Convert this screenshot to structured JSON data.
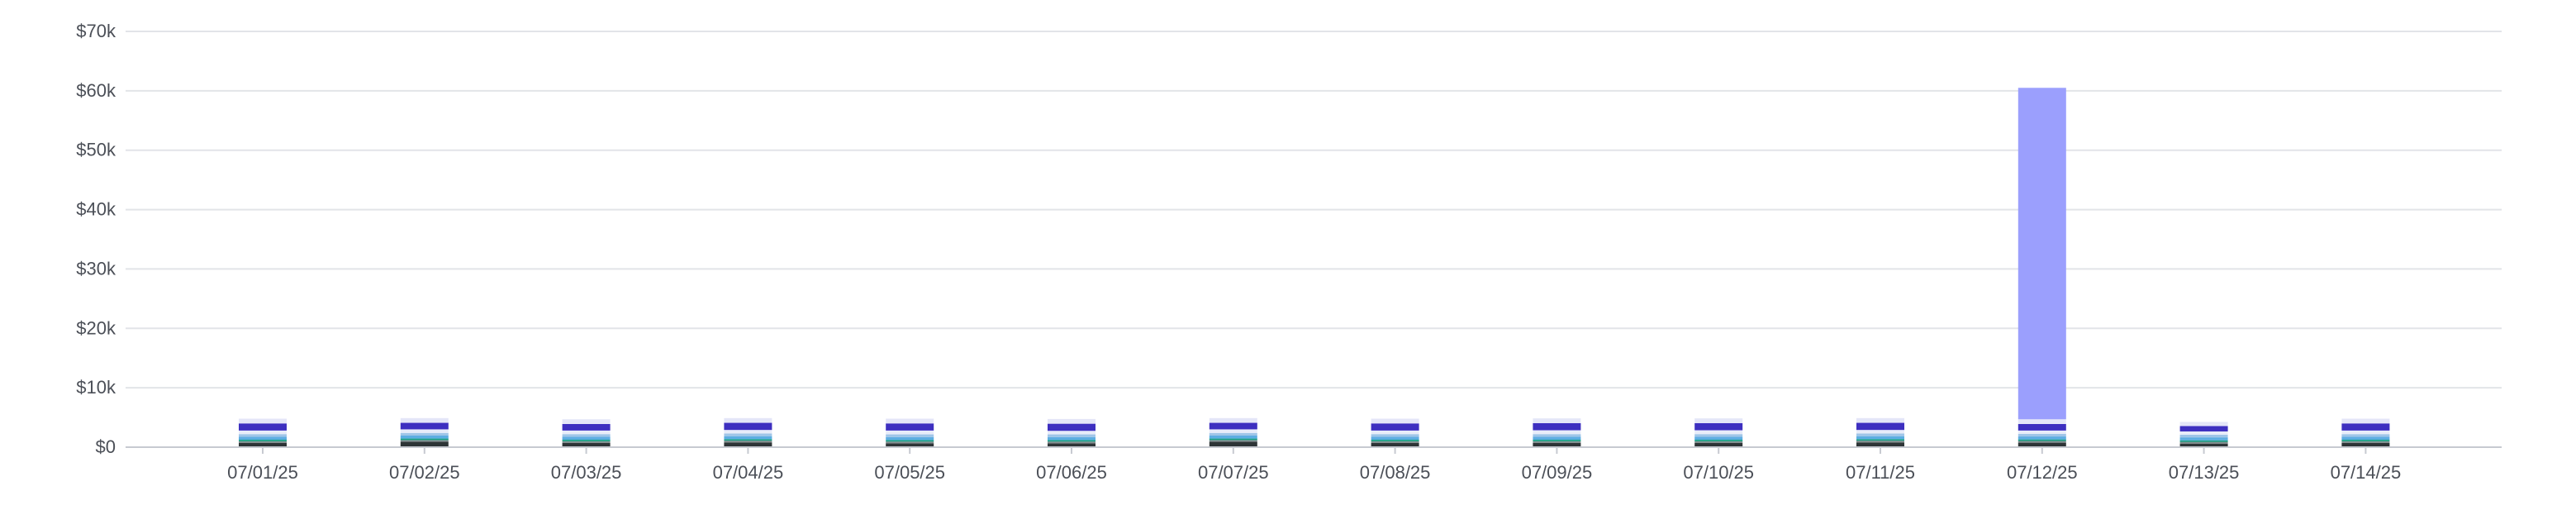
{
  "chart_data": {
    "type": "bar",
    "stacked": true,
    "title": "",
    "xlabel": "",
    "ylabel": "",
    "ylim": [
      0,
      70000
    ],
    "grid": true,
    "legend": "none",
    "yticks": [
      {
        "value": 0,
        "label": "$0"
      },
      {
        "value": 10000,
        "label": "$10k"
      },
      {
        "value": 20000,
        "label": "$20k"
      },
      {
        "value": 30000,
        "label": "$30k"
      },
      {
        "value": 40000,
        "label": "$40k"
      },
      {
        "value": 50000,
        "label": "$50k"
      },
      {
        "value": 60000,
        "label": "$60k"
      },
      {
        "value": 70000,
        "label": "$70k"
      }
    ],
    "categories": [
      "07/01/25",
      "07/02/25",
      "07/03/25",
      "07/04/25",
      "07/05/25",
      "07/06/25",
      "07/07/25",
      "07/08/25",
      "07/09/25",
      "07/10/25",
      "07/11/25",
      "07/12/25",
      "07/13/25",
      "07/14/25"
    ],
    "series": [
      {
        "color": "#2d3436",
        "values": [
          700,
          900,
          700,
          800,
          650,
          650,
          900,
          700,
          700,
          700,
          800,
          750,
          600,
          700
        ]
      },
      {
        "color": "#7f8c8d",
        "values": [
          300,
          300,
          300,
          300,
          300,
          300,
          300,
          300,
          300,
          300,
          300,
          300,
          300,
          300
        ]
      },
      {
        "color": "#16a085",
        "values": [
          250,
          250,
          250,
          250,
          250,
          250,
          250,
          250,
          250,
          250,
          250,
          250,
          250,
          250
        ]
      },
      {
        "color": "#5dade2",
        "values": [
          500,
          500,
          500,
          500,
          500,
          500,
          500,
          500,
          500,
          500,
          500,
          500,
          500,
          500
        ]
      },
      {
        "color": "#9fc5e8",
        "values": [
          450,
          450,
          450,
          450,
          450,
          450,
          450,
          450,
          450,
          450,
          450,
          450,
          450,
          450
        ]
      },
      {
        "color": "#e8ecf9",
        "values": [
          600,
          600,
          600,
          600,
          650,
          600,
          600,
          600,
          650,
          650,
          600,
          550,
          550,
          600
        ]
      },
      {
        "color": "#3d2fc0",
        "values": [
          1200,
          1100,
          1100,
          1200,
          1200,
          1200,
          1100,
          1200,
          1200,
          1200,
          1200,
          1100,
          900,
          1200
        ]
      },
      {
        "color": "#e4e6f8",
        "values": [
          800,
          800,
          800,
          800,
          800,
          800,
          800,
          800,
          800,
          800,
          800,
          800,
          700,
          800
        ]
      },
      {
        "color": "#9b9ffd",
        "values": [
          0,
          0,
          0,
          0,
          0,
          0,
          0,
          0,
          0,
          0,
          0,
          55800,
          0,
          0
        ]
      }
    ]
  }
}
